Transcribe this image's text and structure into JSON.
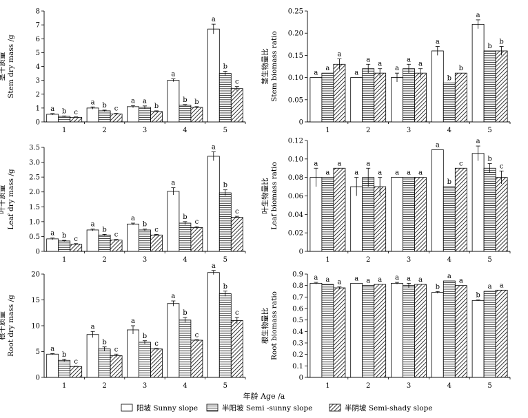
{
  "figure": {
    "x_axis_title": "年龄 Age /a",
    "legend": [
      {
        "label": "阳坡 Sunny slope",
        "pattern": "blank"
      },
      {
        "label": "半阳坡 Semi -sunny slope",
        "pattern": "horizontal"
      },
      {
        "label": "半阴坡 Semi-shady slope",
        "pattern": "diagonal"
      }
    ]
  },
  "chart_data": [
    {
      "type": "bar",
      "ylabel_cn": "茎干质量",
      "ylabel_en": "Stem dry mass /g",
      "categories": [
        "1",
        "2",
        "3",
        "4",
        "5"
      ],
      "ylim": [
        0,
        8
      ],
      "yticks": [
        "0",
        "1",
        "2",
        "3",
        "4",
        "5",
        "6",
        "7",
        "8"
      ],
      "series": [
        {
          "name": "阳坡 Sunny slope",
          "values": [
            0.55,
            1.0,
            1.1,
            3.0,
            6.7
          ],
          "errors": [
            0.05,
            0.08,
            0.08,
            0.1,
            0.35
          ],
          "letters": [
            "a",
            "a",
            "a",
            "a",
            "a"
          ]
        },
        {
          "name": "半阳坡 Semi -sunny slope",
          "values": [
            0.4,
            0.8,
            1.05,
            1.2,
            3.5
          ],
          "errors": [
            0.03,
            0.05,
            0.1,
            0.05,
            0.15
          ],
          "letters": [
            "b",
            "b",
            "a",
            "b",
            "b"
          ]
        },
        {
          "name": "半阴坡 Semi-shady slope",
          "values": [
            0.33,
            0.57,
            0.75,
            1.05,
            2.4
          ],
          "errors": [
            0.03,
            0.04,
            0.05,
            0.05,
            0.15
          ],
          "letters": [
            "c",
            "c",
            "b",
            "b",
            "c"
          ]
        }
      ]
    },
    {
      "type": "bar",
      "ylabel_cn": "茎生物量比",
      "ylabel_en": "Stem biomass ratio",
      "categories": [
        "1",
        "2",
        "3",
        "4",
        "5"
      ],
      "ylim": [
        0,
        0.25
      ],
      "yticks": [
        "0",
        "0.05",
        "0.10",
        "0.15",
        "0.20",
        "0.25"
      ],
      "series": [
        {
          "name": "阳坡 Sunny slope",
          "values": [
            0.1,
            0.1,
            0.1,
            0.16,
            0.22
          ],
          "errors": [
            0,
            0,
            0.01,
            0.01,
            0.01
          ],
          "letters": [
            "a",
            "a",
            "a",
            "a",
            "a"
          ]
        },
        {
          "name": "半阳坡 Semi -sunny slope",
          "values": [
            0.11,
            0.12,
            0.12,
            0.088,
            0.16
          ],
          "errors": [
            0,
            0.01,
            0.01,
            0,
            0
          ],
          "letters": [
            "a",
            "a",
            "a",
            "b",
            "b"
          ]
        },
        {
          "name": "半阴坡 Semi-shady slope",
          "values": [
            0.13,
            0.11,
            0.11,
            0.11,
            0.16
          ],
          "errors": [
            0.012,
            0.01,
            0.01,
            0,
            0.01
          ],
          "letters": [
            "a",
            "a",
            "a",
            "b",
            "b"
          ]
        }
      ]
    },
    {
      "type": "bar",
      "ylabel_cn": "叶干质量",
      "ylabel_en": "Leaf dry mass /g",
      "categories": [
        "1",
        "2",
        "3",
        "4",
        "5"
      ],
      "ylim": [
        0,
        3.5
      ],
      "yticks": [
        "0",
        "0.5",
        "1.0",
        "1.5",
        "2.0",
        "2.5",
        "3.0",
        "3.5"
      ],
      "series": [
        {
          "name": "阳坡 Sunny slope",
          "values": [
            0.42,
            0.72,
            0.92,
            2.02,
            3.2
          ],
          "errors": [
            0.03,
            0.03,
            0.03,
            0.12,
            0.15
          ],
          "letters": [
            "a",
            "a",
            "a",
            "a",
            "a"
          ]
        },
        {
          "name": "半阳坡 Semi -sunny slope",
          "values": [
            0.35,
            0.55,
            0.72,
            0.95,
            1.97
          ],
          "errors": [
            0.02,
            0.02,
            0.03,
            0.05,
            0.1
          ],
          "letters": [
            "b",
            "b",
            "b",
            "b",
            "b"
          ]
        },
        {
          "name": "半阴坡 Semi-shady slope",
          "values": [
            0.24,
            0.38,
            0.55,
            0.8,
            1.15
          ],
          "errors": [
            0.02,
            0.02,
            0.02,
            0.03,
            0.03
          ],
          "letters": [
            "c",
            "c",
            "c",
            "c",
            "c"
          ]
        }
      ]
    },
    {
      "type": "bar",
      "ylabel_cn": "叶生物量比",
      "ylabel_en": "Leaf biomass ratio",
      "categories": [
        "1",
        "2",
        "3",
        "4",
        "5"
      ],
      "ylim": [
        0,
        0.12
      ],
      "yticks": [
        "0",
        "0.02",
        "0.04",
        "0.06",
        "0.08",
        "0.10",
        "0.12"
      ],
      "series": [
        {
          "name": "阳坡 Sunny slope",
          "values": [
            0.08,
            0.07,
            0.08,
            0.11,
            0.106
          ],
          "errors": [
            0.01,
            0.01,
            0,
            0,
            0.008
          ],
          "letters": [
            "a",
            "a",
            "a",
            "a",
            "a"
          ]
        },
        {
          "name": "半阳坡 Semi -sunny slope",
          "values": [
            0.08,
            0.08,
            0.08,
            0.07,
            0.09
          ],
          "errors": [
            0,
            0.01,
            0,
            0,
            0.005
          ],
          "letters": [
            "a",
            "a",
            "a",
            "b",
            "b"
          ]
        },
        {
          "name": "半阴坡 Semi-shady slope",
          "values": [
            0.09,
            0.07,
            0.08,
            0.09,
            0.08
          ],
          "errors": [
            0,
            0.01,
            0,
            0,
            0.007
          ],
          "letters": [
            "a",
            "a",
            "a",
            "c",
            "c"
          ]
        }
      ]
    },
    {
      "type": "bar",
      "ylabel_cn": "根干质量",
      "ylabel_en": "Root dry mass /g",
      "categories": [
        "1",
        "2",
        "3",
        "4",
        "5"
      ],
      "ylim": [
        0,
        20
      ],
      "yticks": [
        "0",
        "5",
        "10",
        "15",
        "20"
      ],
      "series": [
        {
          "name": "阳坡 Sunny slope",
          "values": [
            4.5,
            8.3,
            9.2,
            14.3,
            20.3
          ],
          "errors": [
            0.1,
            0.6,
            0.8,
            0.5,
            0.4
          ],
          "letters": [
            "a",
            "a",
            "a",
            "a",
            "a"
          ]
        },
        {
          "name": "半阳坡 Semi -sunny slope",
          "values": [
            3.3,
            5.5,
            6.8,
            11.1,
            16.2
          ],
          "errors": [
            0.2,
            0.4,
            0.3,
            0.5,
            0.5
          ],
          "letters": [
            "b",
            "b",
            "b",
            "b",
            "b"
          ]
        },
        {
          "name": "半阴坡 Semi-shady slope",
          "values": [
            2.1,
            4.2,
            5.5,
            7.2,
            11.0
          ],
          "errors": [
            0.05,
            0.3,
            0.1,
            0.1,
            0.6
          ],
          "letters": [
            "c",
            "c",
            "c",
            "c",
            "c"
          ]
        }
      ]
    },
    {
      "type": "bar",
      "ylabel_cn": "根生物量比",
      "ylabel_en": "Root biomass ratio",
      "categories": [
        "1",
        "2",
        "3",
        "4",
        "5"
      ],
      "ylim": [
        0,
        0.9
      ],
      "yticks": [
        "0",
        "0.1",
        "0.2",
        "0.3",
        "0.4",
        "0.5",
        "0.6",
        "0.7",
        "0.8",
        "0.9"
      ],
      "series": [
        {
          "name": "阳坡 Sunny slope",
          "values": [
            0.82,
            0.82,
            0.82,
            0.74,
            0.67
          ],
          "errors": [
            0.008,
            0,
            0.008,
            0.008,
            0.005
          ],
          "letters": [
            "a",
            "a",
            "a",
            "b",
            "b"
          ]
        },
        {
          "name": "半阳坡 Semi -sunny slope",
          "values": [
            0.81,
            0.8,
            0.8,
            0.84,
            0.75
          ],
          "errors": [
            0,
            0,
            0.02,
            0,
            0
          ],
          "letters": [
            "a",
            "a",
            "a",
            "a",
            "a"
          ]
        },
        {
          "name": "半阴坡 Semi-shady slope",
          "values": [
            0.78,
            0.81,
            0.81,
            0.8,
            0.76
          ],
          "errors": [
            0.008,
            0,
            0,
            0,
            0
          ],
          "letters": [
            "a",
            "a",
            "a",
            "a",
            "a"
          ]
        }
      ]
    }
  ]
}
